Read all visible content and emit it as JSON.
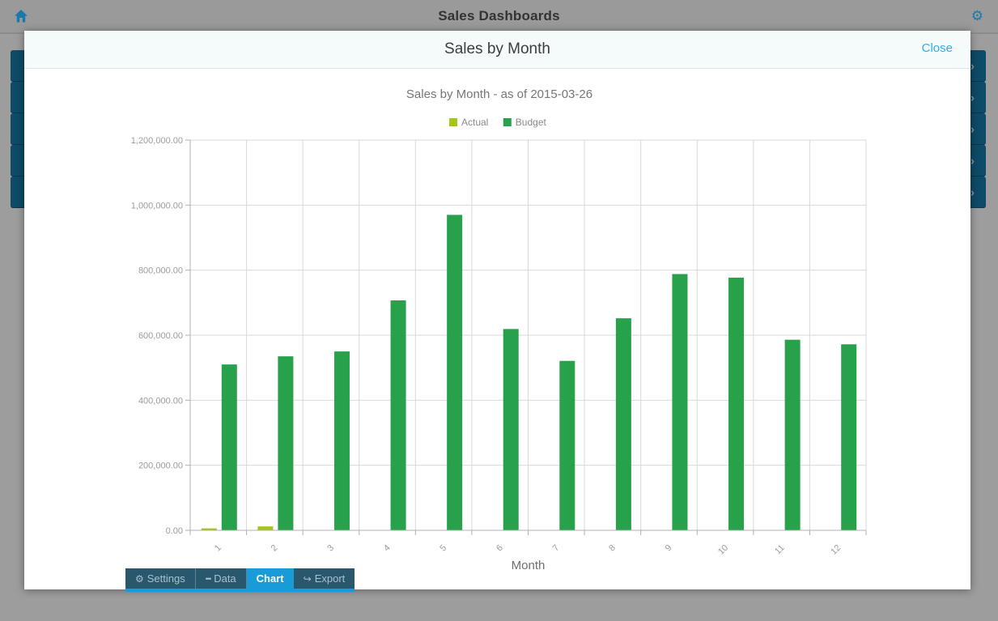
{
  "topbar": {
    "title": "Sales Dashboards"
  },
  "modal": {
    "title": "Sales by Month",
    "close_label": "Close"
  },
  "tabs": [
    {
      "label": "Settings",
      "icon": "gear-icon",
      "active": false
    },
    {
      "label": "Data",
      "icon": "dots-icon",
      "active": false
    },
    {
      "label": "Chart",
      "icon": null,
      "active": true
    },
    {
      "label": "Export",
      "icon": "export-arrow-icon",
      "active": false
    }
  ],
  "chart_data": {
    "type": "bar",
    "title": "Sales by Month - as of 2015-03-26",
    "xlabel": "Month",
    "ylabel": "",
    "categories": [
      "1",
      "2",
      "3",
      "4",
      "5",
      "6",
      "7",
      "8",
      "9",
      "10",
      "11",
      "12"
    ],
    "series": [
      {
        "name": "Actual",
        "color": "#a4c614",
        "values": [
          6000,
          12000,
          0,
          0,
          0,
          0,
          0,
          0,
          0,
          0,
          0,
          0
        ]
      },
      {
        "name": "Budget",
        "color": "#27a24a",
        "values": [
          510000,
          535000,
          550000,
          707000,
          970000,
          619000,
          521000,
          652000,
          788000,
          777000,
          586000,
          572000
        ]
      }
    ],
    "ylim": [
      0,
      1200000
    ],
    "y_ticks": [
      {
        "value": 0,
        "label": "0.00"
      },
      {
        "value": 200000,
        "label": "200,000.00"
      },
      {
        "value": 400000,
        "label": "400,000.00"
      },
      {
        "value": 600000,
        "label": "600,000.00"
      },
      {
        "value": 800000,
        "label": "800,000.00"
      },
      {
        "value": 1000000,
        "label": "1,000,000.00"
      },
      {
        "value": 1200000,
        "label": "1,200,000.00"
      }
    ],
    "x_label_rotation": -45,
    "grid": true,
    "legend_position": "top"
  },
  "colors": {
    "accent_blue": "#189bd7",
    "navy_row": "#0d4b68",
    "close_link": "#2ab2ec",
    "topbar_icon": "#1a79ab",
    "grid_line": "#d9d9d9",
    "axis_line": "#b0b0b0"
  }
}
